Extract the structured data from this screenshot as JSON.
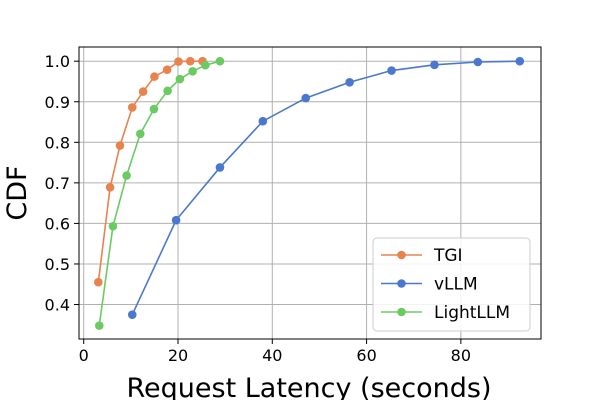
{
  "chart_data": {
    "type": "line",
    "xlabel": "Request Latency (seconds)",
    "ylabel": "CDF",
    "xlim": [
      -1,
      97
    ],
    "ylim": [
      0.315,
      1.035
    ],
    "xticks": [
      0,
      20,
      40,
      60,
      80
    ],
    "xtick_labels": [
      "0",
      "20",
      "40",
      "60",
      "80"
    ],
    "yticks": [
      0.4,
      0.5,
      0.6,
      0.7,
      0.8,
      0.9,
      1.0
    ],
    "ytick_labels": [
      "0.4",
      "0.5",
      "0.6",
      "0.7",
      "0.8",
      "0.9",
      "1.0"
    ],
    "grid": true,
    "legend_position": "lower-right",
    "series": [
      {
        "name": "TGI",
        "color": "#e8834e",
        "x": [
          3.1,
          5.6,
          7.7,
          10.3,
          12.6,
          15.0,
          17.7,
          20.1,
          22.6,
          25.2
        ],
        "y": [
          0.455,
          0.689,
          0.792,
          0.886,
          0.925,
          0.962,
          0.979,
          0.999,
          1.0,
          1.0
        ]
      },
      {
        "name": "vLLM",
        "color": "#4a78cf",
        "x": [
          10.3,
          19.6,
          28.9,
          38.0,
          47.1,
          56.4,
          65.3,
          74.4,
          83.6,
          92.5
        ],
        "y": [
          0.375,
          0.608,
          0.738,
          0.852,
          0.909,
          0.948,
          0.977,
          0.991,
          0.998,
          1.0
        ]
      },
      {
        "name": "LightLLM",
        "color": "#6bcb63",
        "x": [
          3.3,
          6.2,
          9.1,
          12.0,
          14.9,
          17.8,
          20.4,
          23.1,
          25.8,
          28.9
        ],
        "y": [
          0.348,
          0.593,
          0.718,
          0.821,
          0.882,
          0.927,
          0.956,
          0.975,
          0.99,
          1.0
        ]
      }
    ]
  }
}
